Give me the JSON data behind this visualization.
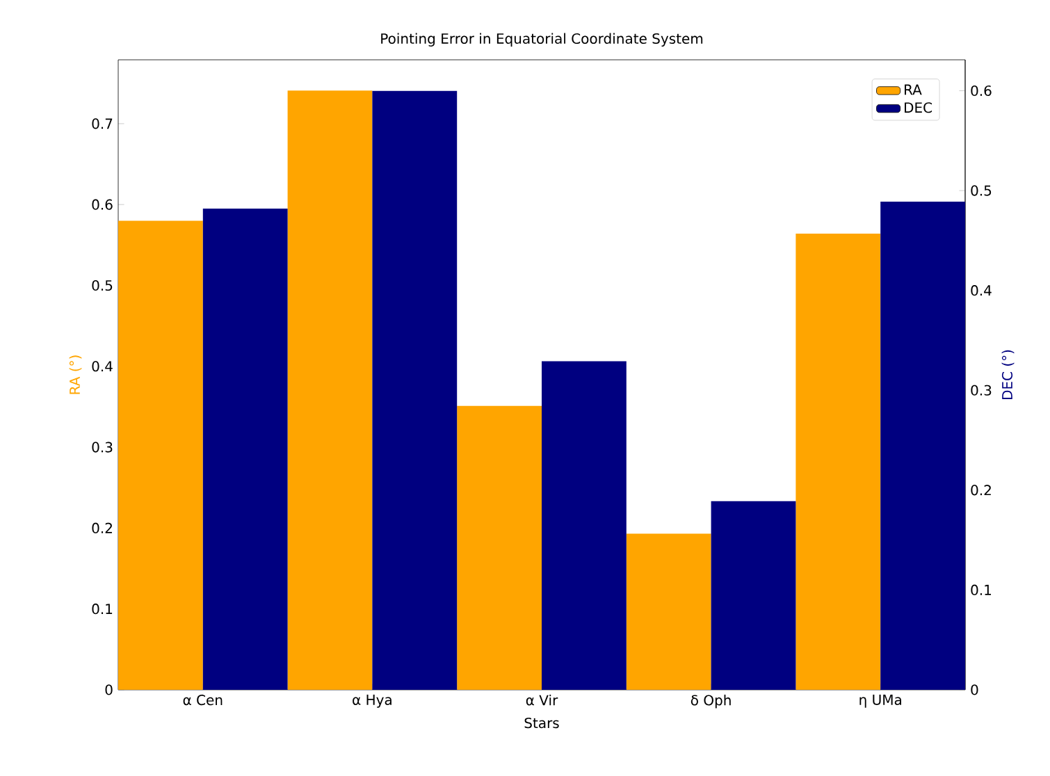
{
  "chart_data": {
    "type": "bar",
    "title": "Pointing Error in Equatorial Coordinate System",
    "xlabel": "Stars",
    "ylabel": "RA (°)",
    "y2label": "DEC (°)",
    "categories": [
      "α Cen",
      "α Hya",
      "α Vir",
      "δ Oph",
      "η UMa"
    ],
    "series": [
      {
        "name": "RA",
        "color": "#ffa500",
        "values": [
          0.58,
          0.741,
          0.351,
          0.193,
          0.564
        ]
      },
      {
        "name": "DEC",
        "color": "#000080",
        "axis": "y2",
        "values": [
          0.482,
          0.6,
          0.329,
          0.189,
          0.489
        ]
      }
    ],
    "ylim": [
      0,
      0.779
    ],
    "yticks": [
      0,
      0.1,
      0.2,
      0.3,
      0.4,
      0.5,
      0.6,
      0.7
    ],
    "y2lim": [
      0,
      0.631
    ],
    "y2ticks": [
      0,
      0.1,
      0.2,
      0.3,
      0.4,
      0.5,
      0.6
    ],
    "legend": "top right",
    "grid": false
  }
}
